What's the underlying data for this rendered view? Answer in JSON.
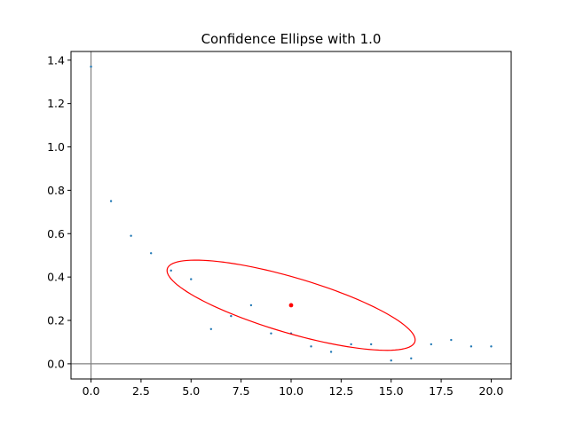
{
  "chart_data": {
    "type": "scatter",
    "title": "Confidence Ellipse with 1.0",
    "xlabel": "",
    "ylabel": "",
    "xlim": [
      -1.0,
      21.0
    ],
    "ylim": [
      -0.07,
      1.44
    ],
    "x_ticks": [
      0.0,
      2.5,
      5.0,
      7.5,
      10.0,
      12.5,
      15.0,
      17.5,
      20.0
    ],
    "x_tick_labels": [
      "0.0",
      "2.5",
      "5.0",
      "7.5",
      "10.0",
      "12.5",
      "15.0",
      "17.5",
      "20.0"
    ],
    "y_ticks": [
      0.0,
      0.2,
      0.4,
      0.6,
      0.8,
      1.0,
      1.2,
      1.4
    ],
    "y_tick_labels": [
      "0.0",
      "0.2",
      "0.4",
      "0.6",
      "0.8",
      "1.0",
      "1.2",
      "1.4"
    ],
    "grid": false,
    "reference_lines": {
      "x": 0,
      "y": 0,
      "color": "#808080"
    },
    "series": [
      {
        "color": "#1f77b4",
        "points": [
          [
            0,
            1.37
          ],
          [
            1,
            0.75
          ],
          [
            2,
            0.59
          ],
          [
            3,
            0.51
          ],
          [
            4,
            0.43
          ],
          [
            5,
            0.39
          ],
          [
            6,
            0.16
          ],
          [
            7,
            0.22
          ],
          [
            8,
            0.27
          ],
          [
            9,
            0.14
          ],
          [
            10,
            0.14
          ],
          [
            11,
            0.08
          ],
          [
            12,
            0.055
          ],
          [
            13,
            0.09
          ],
          [
            14,
            0.09
          ],
          [
            15,
            0.015
          ],
          [
            16,
            0.025
          ],
          [
            17,
            0.09
          ],
          [
            18,
            0.11
          ],
          [
            19,
            0.08
          ],
          [
            20,
            0.08
          ]
        ]
      }
    ],
    "center": {
      "x": 10.0,
      "y": 0.27,
      "color": "#ff0000"
    },
    "ellipse": {
      "color": "#ff0000",
      "center_x": 10.0,
      "center_y": 0.27,
      "extremes": [
        [
          3.8,
          0.43
        ],
        [
          16.2,
          0.11
        ],
        [
          5.0,
          0.478
        ],
        [
          15.0,
          0.062
        ]
      ]
    }
  }
}
